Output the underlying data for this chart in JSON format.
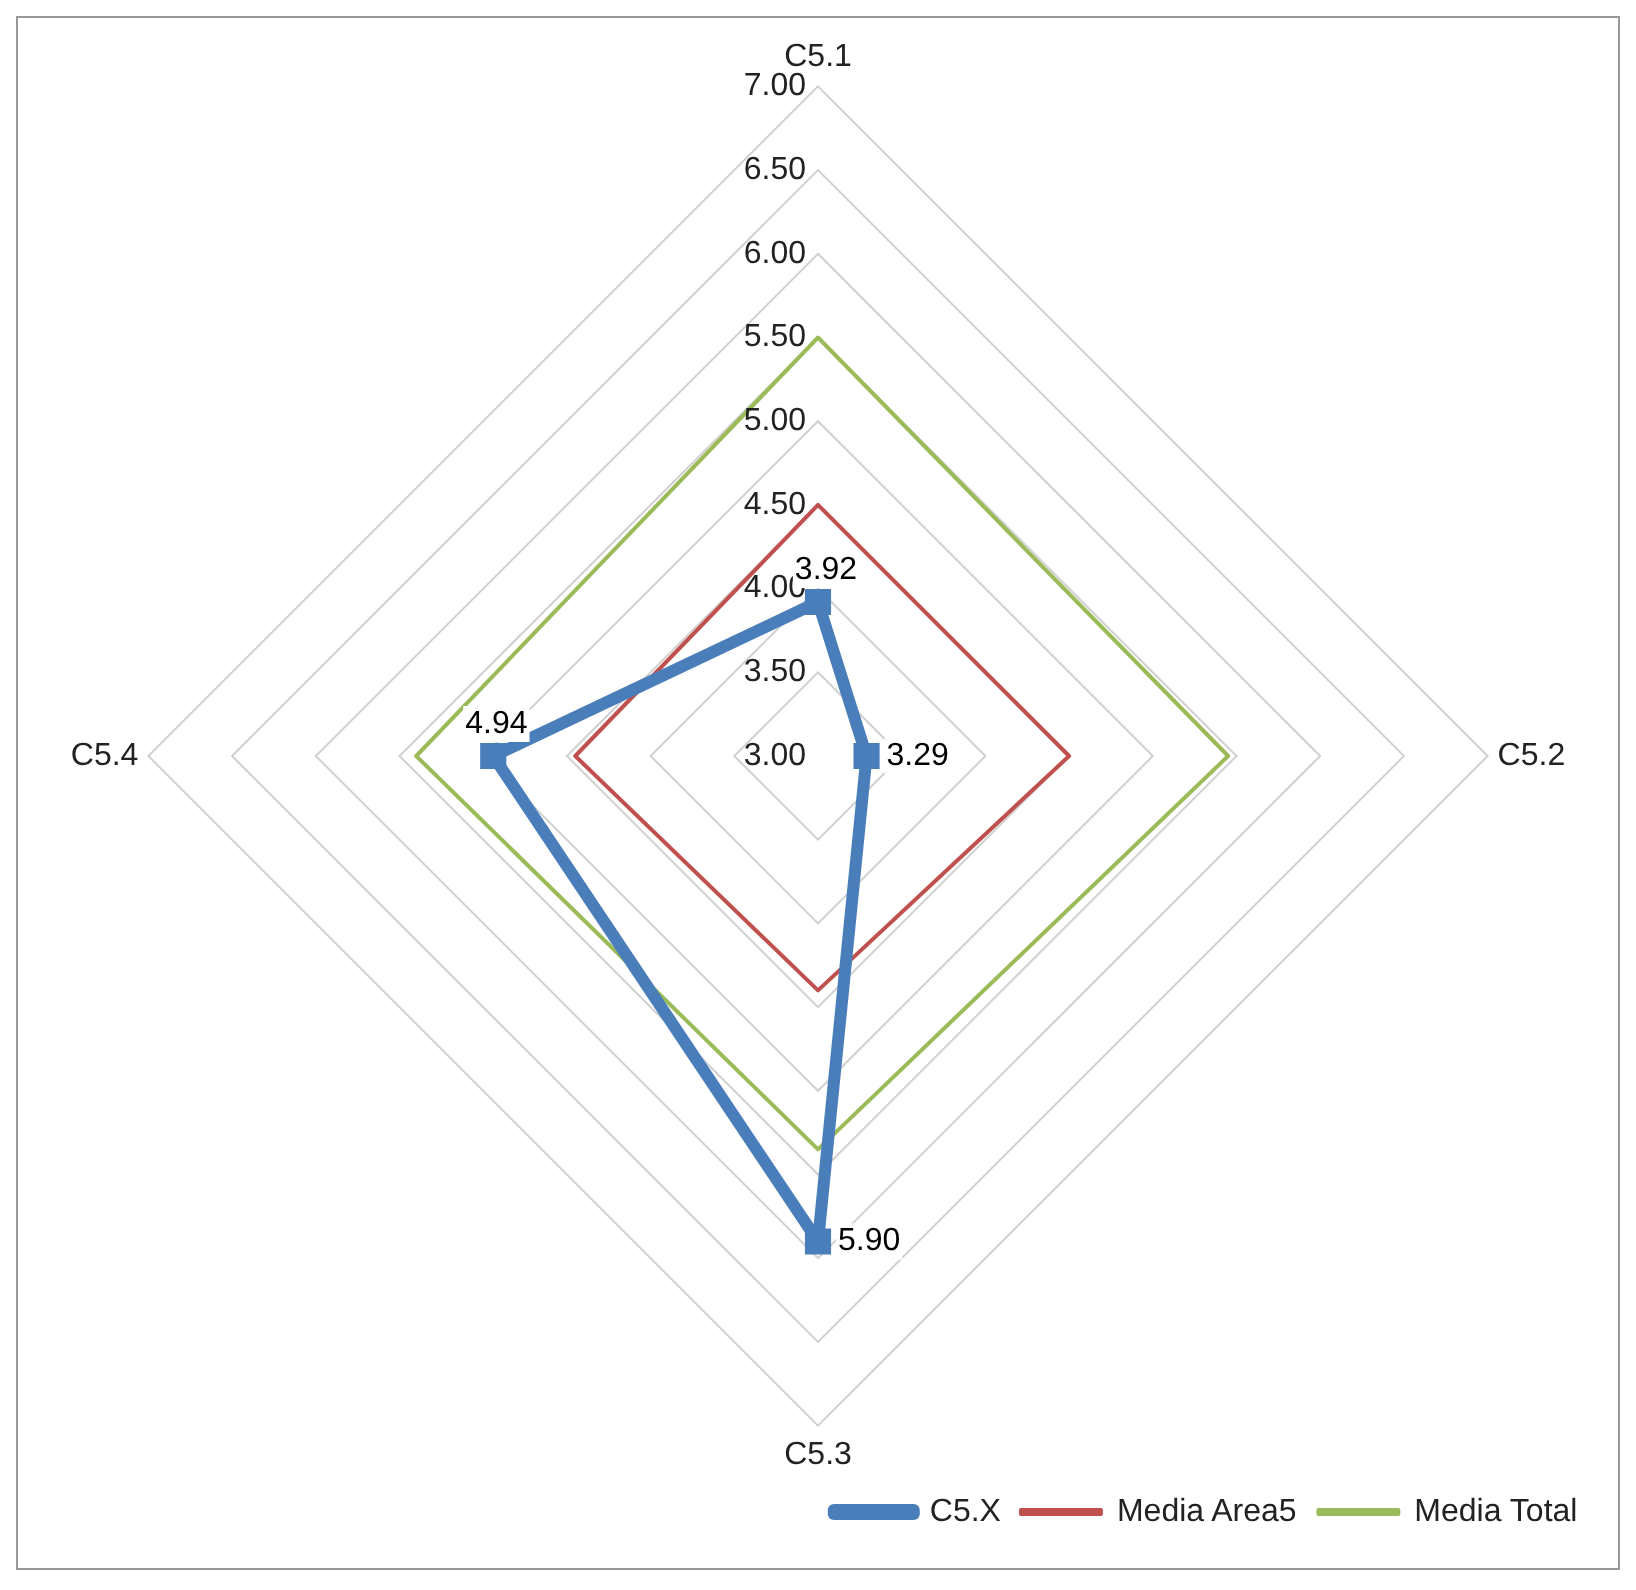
{
  "chart_data": {
    "type": "radar",
    "categories": [
      "C5.1",
      "C5.2",
      "C5.3",
      "C5.4"
    ],
    "ylim": [
      3,
      7
    ],
    "yticks": [
      {
        "value": 3,
        "label": "3.00"
      },
      {
        "value": 3.5,
        "label": "3.50"
      },
      {
        "value": 4,
        "label": "4.00"
      },
      {
        "value": 4.5,
        "label": "4.50"
      },
      {
        "value": 5,
        "label": "5.00"
      },
      {
        "value": 5.5,
        "label": "5.50"
      },
      {
        "value": 6,
        "label": "6.00"
      },
      {
        "value": 6.5,
        "label": "6.50"
      },
      {
        "value": 7,
        "label": "7.00"
      }
    ],
    "grid": true,
    "legend": "bottom right",
    "series": [
      {
        "name": "C5.X",
        "color": "#4a7ebb",
        "values": [
          3.92,
          3.29,
          5.9,
          4.94
        ],
        "marker": "square",
        "value_labels": [
          "3.92",
          "3.29",
          "5.90",
          "4.94"
        ]
      },
      {
        "name": "Media Area5",
        "color": "#c0504d",
        "values": [
          4.5,
          4.5,
          4.4,
          4.45
        ],
        "marker": "none"
      },
      {
        "name": "Media Total",
        "color": "#9bbb59",
        "values": [
          5.5,
          5.45,
          5.35,
          5.4
        ],
        "marker": "none"
      }
    ]
  }
}
